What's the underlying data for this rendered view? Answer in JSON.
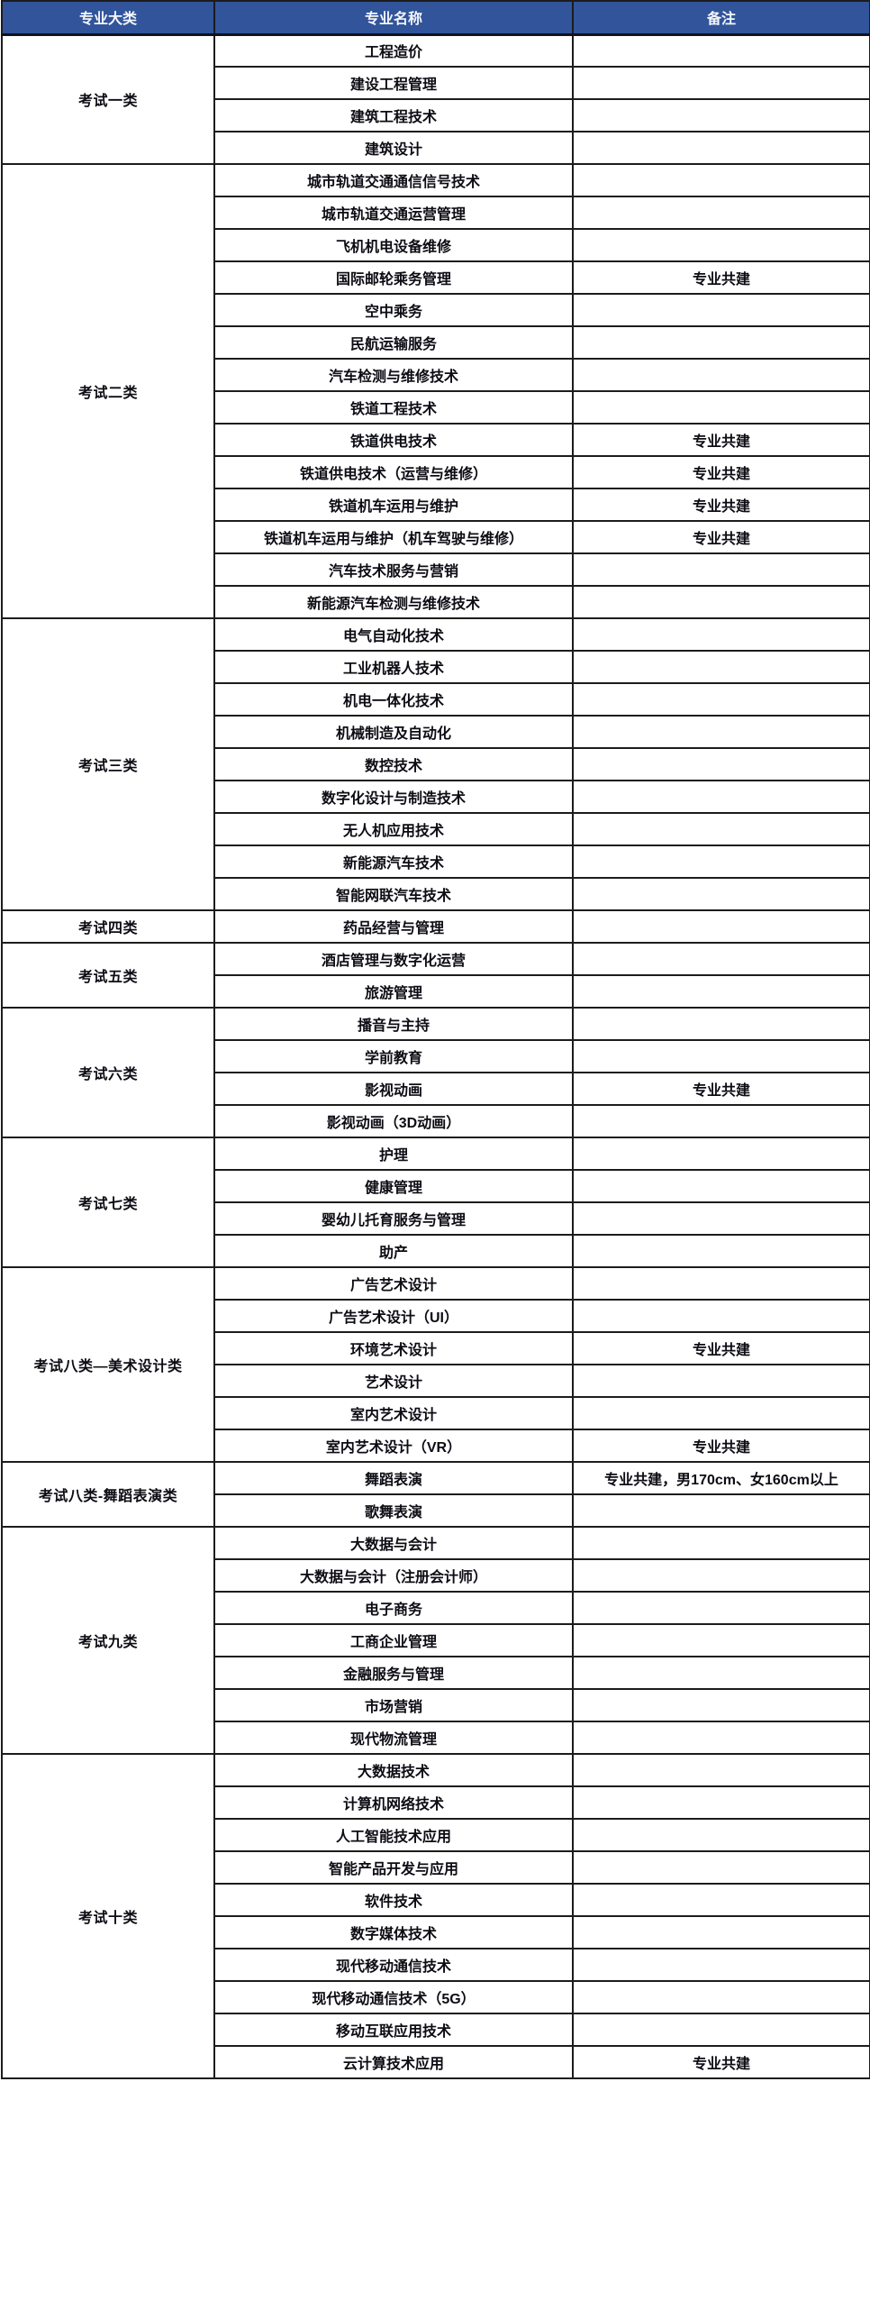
{
  "colors": {
    "header_bg": "#31549B",
    "header_text": "#F4F6FA",
    "body_text": "#0C0C14",
    "border": "#1C1C1C"
  },
  "table": {
    "headers": [
      "专业大类",
      "专业名称",
      "备注"
    ],
    "groups": [
      {
        "category": "考试一类",
        "majors": [
          {
            "name": "工程造价",
            "note": ""
          },
          {
            "name": "建设工程管理",
            "note": ""
          },
          {
            "name": "建筑工程技术",
            "note": ""
          },
          {
            "name": "建筑设计",
            "note": ""
          }
        ]
      },
      {
        "category": "考试二类",
        "majors": [
          {
            "name": "城市轨道交通通信信号技术",
            "note": ""
          },
          {
            "name": "城市轨道交通运营管理",
            "note": ""
          },
          {
            "name": "飞机机电设备维修",
            "note": ""
          },
          {
            "name": "国际邮轮乘务管理",
            "note": "专业共建"
          },
          {
            "name": "空中乘务",
            "note": ""
          },
          {
            "name": "民航运输服务",
            "note": ""
          },
          {
            "name": "汽车检测与维修技术",
            "note": ""
          },
          {
            "name": "铁道工程技术",
            "note": ""
          },
          {
            "name": "铁道供电技术",
            "note": "专业共建"
          },
          {
            "name": "铁道供电技术（运营与维修）",
            "note": "专业共建"
          },
          {
            "name": "铁道机车运用与维护",
            "note": "专业共建"
          },
          {
            "name": "铁道机车运用与维护（机车驾驶与维修）",
            "note": "专业共建"
          },
          {
            "name": "汽车技术服务与营销",
            "note": ""
          },
          {
            "name": "新能源汽车检测与维修技术",
            "note": ""
          }
        ]
      },
      {
        "category": "考试三类",
        "majors": [
          {
            "name": "电气自动化技术",
            "note": ""
          },
          {
            "name": "工业机器人技术",
            "note": ""
          },
          {
            "name": "机电一体化技术",
            "note": ""
          },
          {
            "name": "机械制造及自动化",
            "note": ""
          },
          {
            "name": "数控技术",
            "note": ""
          },
          {
            "name": "数字化设计与制造技术",
            "note": ""
          },
          {
            "name": "无人机应用技术",
            "note": ""
          },
          {
            "name": "新能源汽车技术",
            "note": ""
          },
          {
            "name": "智能网联汽车技术",
            "note": ""
          }
        ]
      },
      {
        "category": "考试四类",
        "majors": [
          {
            "name": "药品经营与管理",
            "note": ""
          }
        ]
      },
      {
        "category": "考试五类",
        "majors": [
          {
            "name": "酒店管理与数字化运营",
            "note": ""
          },
          {
            "name": "旅游管理",
            "note": ""
          }
        ]
      },
      {
        "category": "考试六类",
        "majors": [
          {
            "name": "播音与主持",
            "note": ""
          },
          {
            "name": "学前教育",
            "note": ""
          },
          {
            "name": "影视动画",
            "note": "专业共建"
          },
          {
            "name": "影视动画（3D动画）",
            "note": ""
          }
        ]
      },
      {
        "category": "考试七类",
        "majors": [
          {
            "name": "护理",
            "note": ""
          },
          {
            "name": "健康管理",
            "note": ""
          },
          {
            "name": "婴幼儿托育服务与管理",
            "note": ""
          },
          {
            "name": "助产",
            "note": ""
          }
        ]
      },
      {
        "category": "考试八类—美术设计类",
        "majors": [
          {
            "name": "广告艺术设计",
            "note": ""
          },
          {
            "name": "广告艺术设计（UI）",
            "note": ""
          },
          {
            "name": "环境艺术设计",
            "note": "专业共建"
          },
          {
            "name": "艺术设计",
            "note": ""
          },
          {
            "name": "室内艺术设计",
            "note": ""
          },
          {
            "name": "室内艺术设计（VR）",
            "note": "专业共建"
          }
        ]
      },
      {
        "category": "考试八类-舞蹈表演类",
        "majors": [
          {
            "name": "舞蹈表演",
            "note": "专业共建，男170cm、女160cm以上"
          },
          {
            "name": "歌舞表演",
            "note": ""
          }
        ]
      },
      {
        "category": "考试九类",
        "majors": [
          {
            "name": "大数据与会计",
            "note": ""
          },
          {
            "name": "大数据与会计（注册会计师）",
            "note": ""
          },
          {
            "name": "电子商务",
            "note": ""
          },
          {
            "name": "工商企业管理",
            "note": ""
          },
          {
            "name": "金融服务与管理",
            "note": ""
          },
          {
            "name": "市场营销",
            "note": ""
          },
          {
            "name": "现代物流管理",
            "note": ""
          }
        ]
      },
      {
        "category": "考试十类",
        "majors": [
          {
            "name": "大数据技术",
            "note": ""
          },
          {
            "name": "计算机网络技术",
            "note": ""
          },
          {
            "name": "人工智能技术应用",
            "note": ""
          },
          {
            "name": "智能产品开发与应用",
            "note": ""
          },
          {
            "name": "软件技术",
            "note": ""
          },
          {
            "name": "数字媒体技术",
            "note": ""
          },
          {
            "name": "现代移动通信技术",
            "note": ""
          },
          {
            "name": "现代移动通信技术（5G）",
            "note": ""
          },
          {
            "name": "移动互联应用技术",
            "note": ""
          },
          {
            "name": "云计算技术应用",
            "note": "专业共建"
          }
        ]
      }
    ]
  }
}
